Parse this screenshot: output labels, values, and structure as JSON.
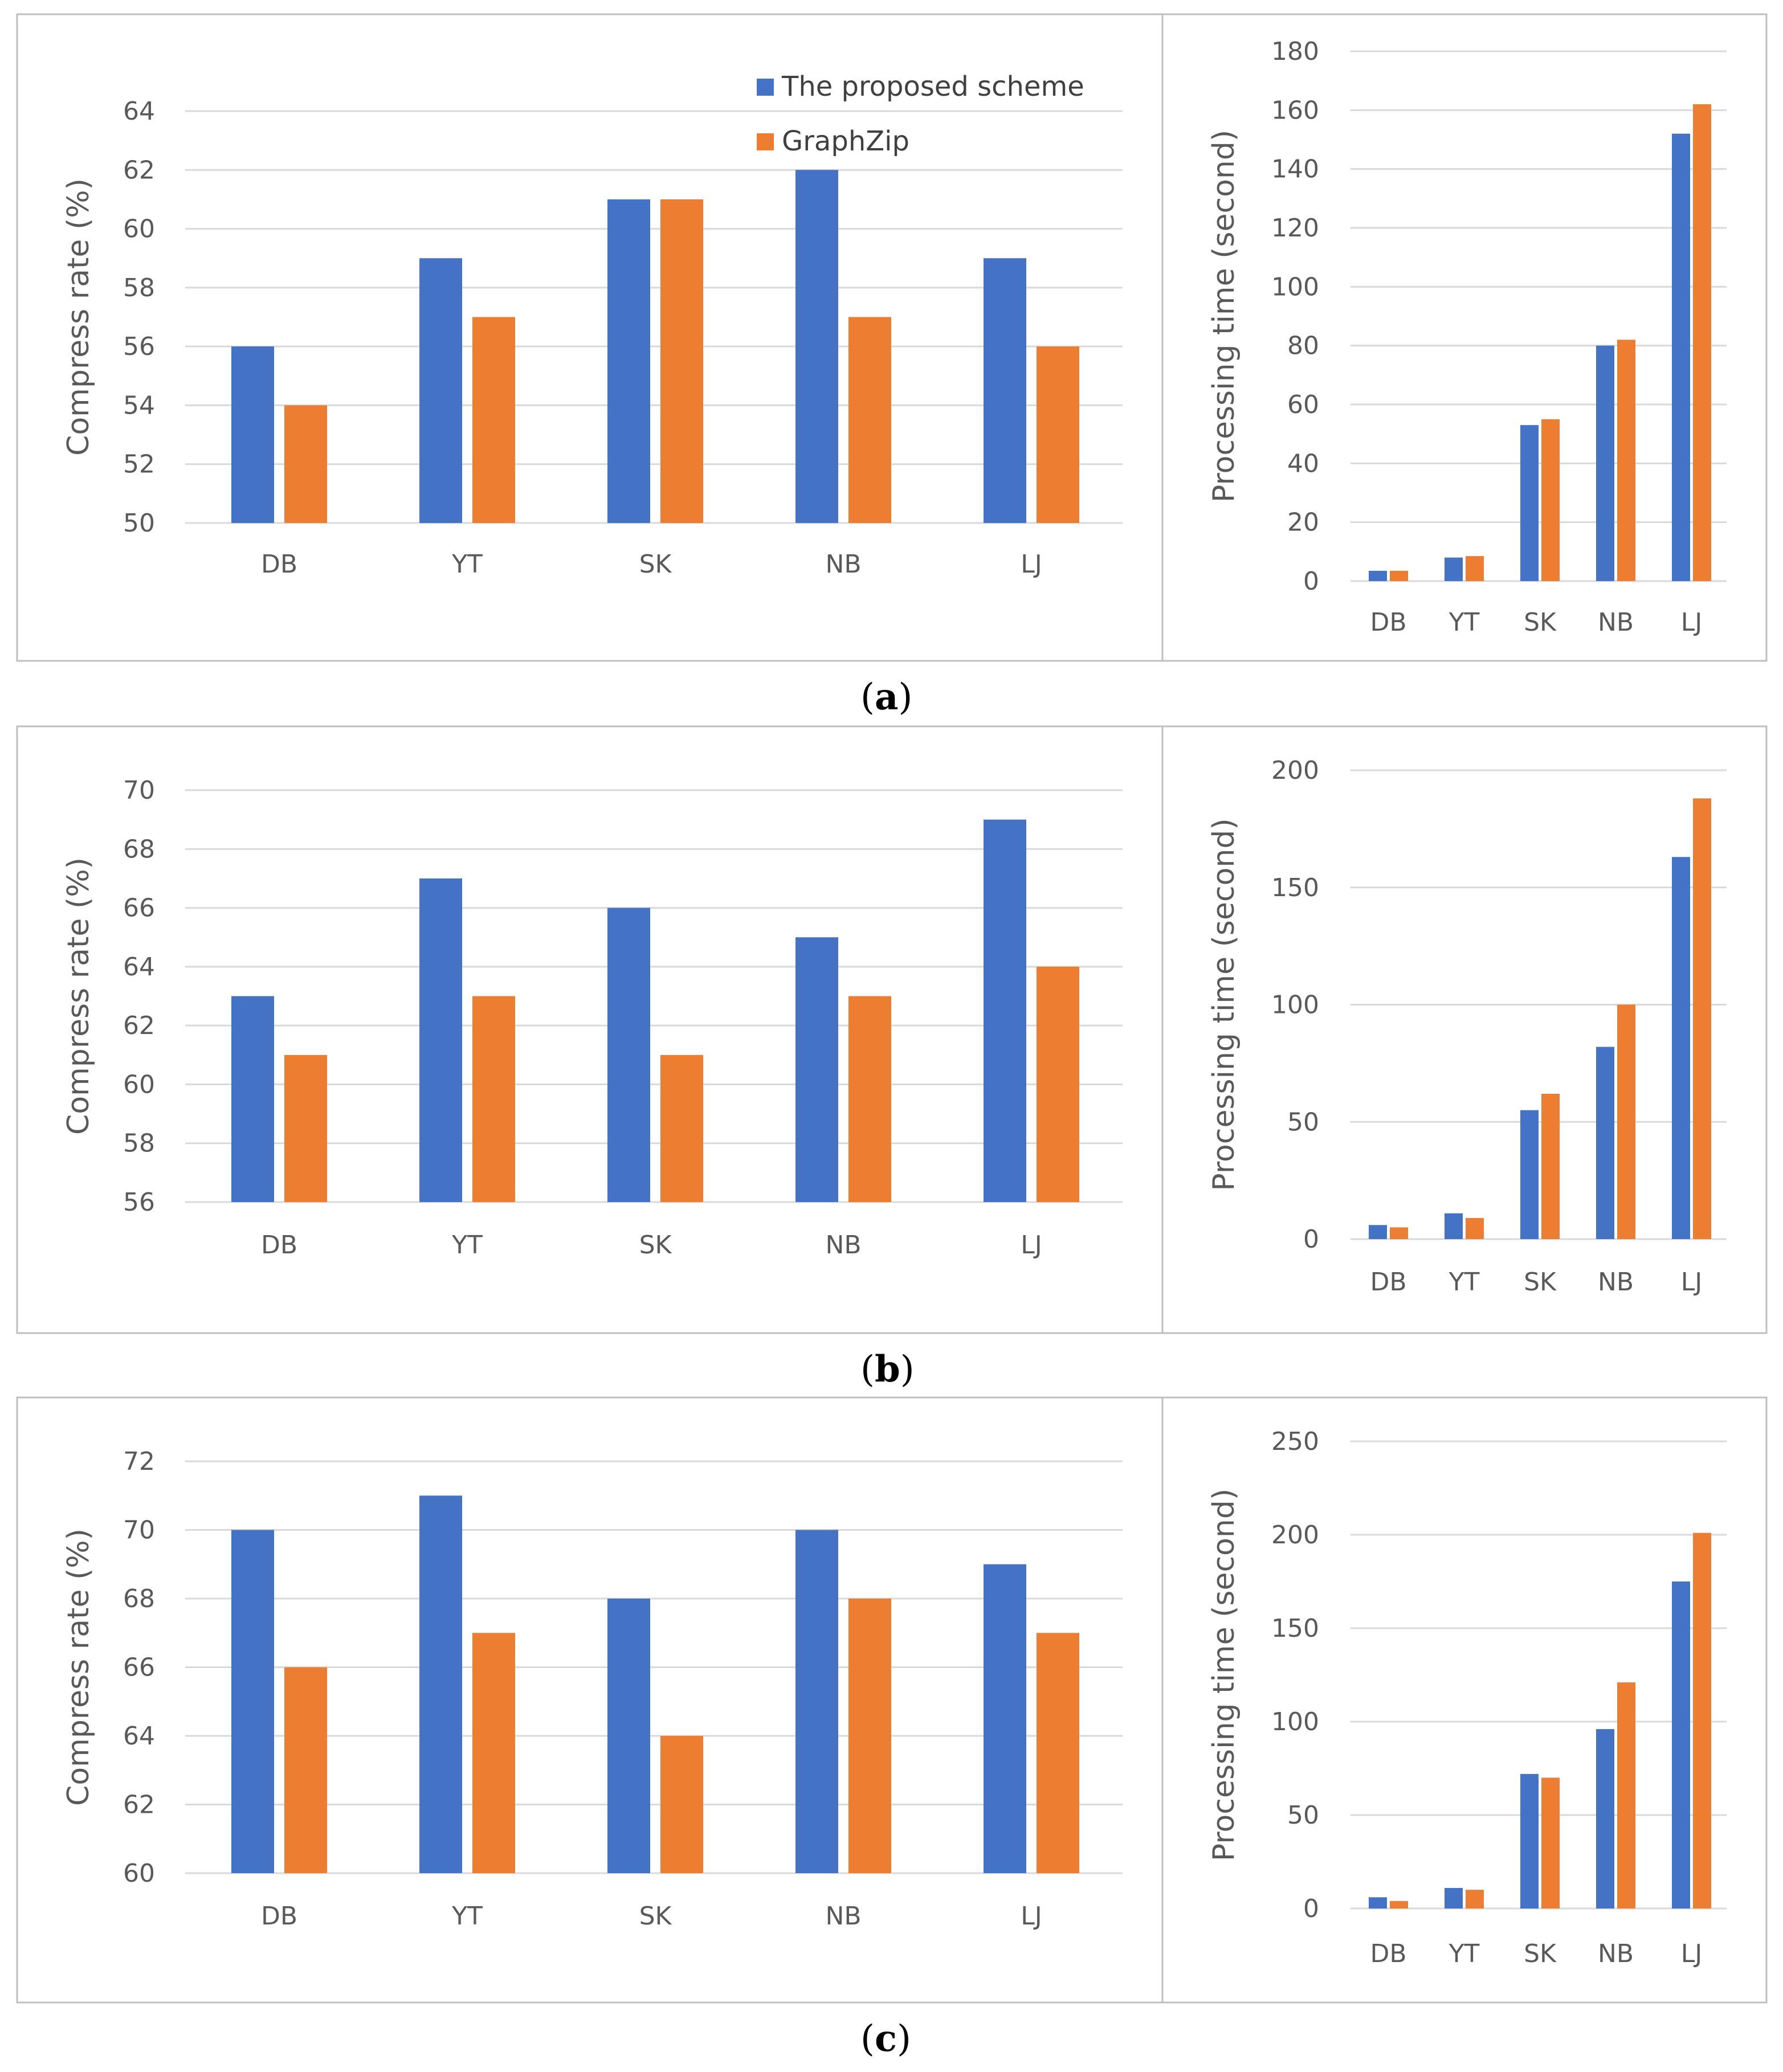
{
  "legend": {
    "series_a": "The proposed scheme",
    "series_b": "GraphZip"
  },
  "colors": {
    "series_a": "#4472C4",
    "series_b": "#ED7D31",
    "grid": "#D9D9D9",
    "frame": "#BFBFBF"
  },
  "panels": [
    {
      "letter": "a",
      "compress": {
        "ylabel": "Compress rate (%)",
        "yticks": [
          50,
          52,
          54,
          56,
          58,
          60,
          62,
          64
        ],
        "ylim": [
          50,
          64
        ]
      },
      "processing": {
        "ylabel": "Processing time (second)",
        "yticks": [
          0,
          20,
          40,
          60,
          80,
          100,
          120,
          140,
          160,
          180
        ],
        "ylim": [
          0,
          180
        ]
      }
    },
    {
      "letter": "b",
      "compress": {
        "ylabel": "Compress rate (%)",
        "yticks": [
          56,
          58,
          60,
          62,
          64,
          66,
          68,
          70
        ],
        "ylim": [
          56,
          70
        ]
      },
      "processing": {
        "ylabel": "Processing time (second)",
        "yticks": [
          0,
          50,
          100,
          150,
          200
        ],
        "ylim": [
          0,
          200
        ]
      }
    },
    {
      "letter": "c",
      "compress": {
        "ylabel": "Compress rate (%)",
        "yticks": [
          60,
          62,
          64,
          66,
          68,
          70,
          72
        ],
        "ylim": [
          60,
          72
        ]
      },
      "processing": {
        "ylabel": "Processing time (second)",
        "yticks": [
          0,
          50,
          100,
          150,
          200,
          250
        ],
        "ylim": [
          0,
          250
        ]
      }
    }
  ],
  "chart_data": [
    {
      "type": "bar",
      "panel": "a",
      "title": "",
      "xlabel": "",
      "ylabel": "Compress rate (%)",
      "ylim": [
        50,
        64
      ],
      "categories": [
        "DB",
        "YT",
        "SK",
        "NB",
        "LJ"
      ],
      "series": [
        {
          "name": "The proposed scheme",
          "values": [
            56,
            59,
            61,
            62,
            59
          ]
        },
        {
          "name": "GraphZip",
          "values": [
            54,
            57,
            61,
            57,
            56
          ]
        }
      ],
      "legend": "top-right",
      "grid": true
    },
    {
      "type": "bar",
      "panel": "a",
      "title": "",
      "xlabel": "",
      "ylabel": "Processing time (second)",
      "ylim": [
        0,
        180
      ],
      "categories": [
        "DB",
        "YT",
        "SK",
        "NB",
        "LJ"
      ],
      "series": [
        {
          "name": "The proposed scheme",
          "values": [
            3.5,
            8,
            53,
            80,
            152
          ]
        },
        {
          "name": "GraphZip",
          "values": [
            3.5,
            8.5,
            55,
            82,
            162
          ]
        }
      ],
      "grid": true
    },
    {
      "type": "bar",
      "panel": "b",
      "title": "",
      "xlabel": "",
      "ylabel": "Compress rate (%)",
      "ylim": [
        56,
        70
      ],
      "categories": [
        "DB",
        "YT",
        "SK",
        "NB",
        "LJ"
      ],
      "series": [
        {
          "name": "The proposed scheme",
          "values": [
            63,
            67,
            66,
            65,
            69
          ]
        },
        {
          "name": "GraphZip",
          "values": [
            61,
            63,
            61,
            63,
            64
          ]
        }
      ],
      "grid": true
    },
    {
      "type": "bar",
      "panel": "b",
      "title": "",
      "xlabel": "",
      "ylabel": "Processing time (second)",
      "ylim": [
        0,
        200
      ],
      "categories": [
        "DB",
        "YT",
        "SK",
        "NB",
        "LJ"
      ],
      "series": [
        {
          "name": "The proposed scheme",
          "values": [
            6,
            11,
            55,
            82,
            163
          ]
        },
        {
          "name": "GraphZip",
          "values": [
            5,
            9,
            62,
            100,
            188
          ]
        }
      ],
      "grid": true
    },
    {
      "type": "bar",
      "panel": "c",
      "title": "",
      "xlabel": "",
      "ylabel": "Compress rate (%)",
      "ylim": [
        60,
        72
      ],
      "categories": [
        "DB",
        "YT",
        "SK",
        "NB",
        "LJ"
      ],
      "series": [
        {
          "name": "The proposed scheme",
          "values": [
            70,
            71,
            68,
            70,
            69
          ]
        },
        {
          "name": "GraphZip",
          "values": [
            66,
            67,
            64,
            68,
            67
          ]
        }
      ],
      "grid": true
    },
    {
      "type": "bar",
      "panel": "c",
      "title": "",
      "xlabel": "",
      "ylabel": "Processing time (second)",
      "ylim": [
        0,
        250
      ],
      "categories": [
        "DB",
        "YT",
        "SK",
        "NB",
        "LJ"
      ],
      "series": [
        {
          "name": "The proposed scheme",
          "values": [
            6,
            11,
            72,
            96,
            175
          ]
        },
        {
          "name": "GraphZip",
          "values": [
            4,
            10,
            70,
            121,
            201
          ]
        }
      ],
      "grid": true
    }
  ]
}
